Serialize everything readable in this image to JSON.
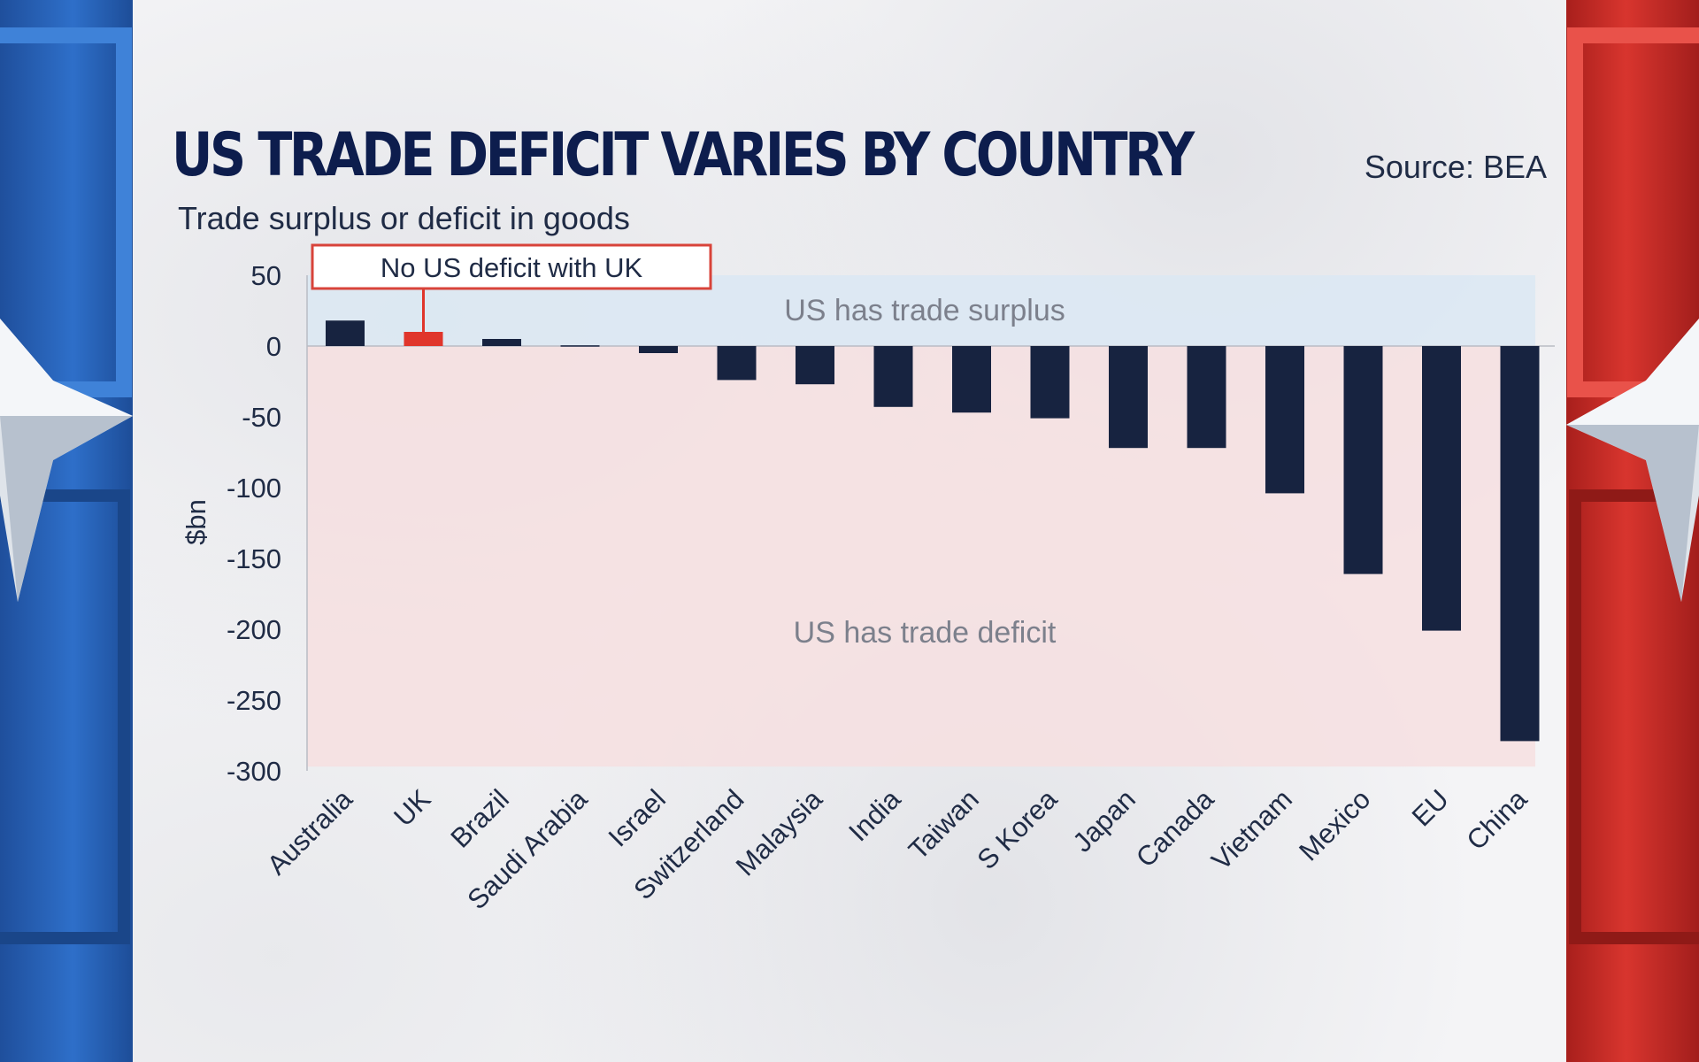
{
  "header": {
    "title": "US TRADE DEFICIT VARIES BY COUNTRY",
    "subtitle": "Trade surplus or deficit in goods",
    "source": "Source: BEA"
  },
  "colors": {
    "bar": "#172340",
    "highlight_bar": "#e0352b",
    "surplus_band": "#dbe8f3",
    "deficit_band": "#f6dfe0",
    "left_border": "#2e6fc9",
    "right_border": "#d8352e"
  },
  "chart_data": {
    "type": "bar",
    "title": "US TRADE DEFICIT VARIES BY COUNTRY",
    "subtitle": "Trade surplus or deficit in goods",
    "ylabel": "$bn",
    "xlabel": "",
    "ylim": [
      -300,
      50
    ],
    "yticks": [
      50,
      0,
      -50,
      -100,
      -150,
      -200,
      -250,
      -300
    ],
    "grid": false,
    "categories": [
      "Australia",
      "UK",
      "Brazil",
      "Saudi Arabia",
      "Israel",
      "Switzerland",
      "Malaysia",
      "India",
      "Taiwan",
      "S Korea",
      "Japan",
      "Canada",
      "Vietnam",
      "Mexico",
      "EU",
      "China"
    ],
    "values": [
      18,
      10,
      5,
      0.5,
      -5,
      -24,
      -27,
      -43,
      -47,
      -51,
      -72,
      -72,
      -104,
      -161,
      -201,
      -279
    ],
    "highlight": "UK",
    "regions": [
      {
        "label": "US has trade surplus",
        "from": 0,
        "to": 50
      },
      {
        "label": "US has trade deficit",
        "from": -297,
        "to": 0
      }
    ],
    "annotation": {
      "text": "No US deficit with UK",
      "target": "UK"
    }
  }
}
